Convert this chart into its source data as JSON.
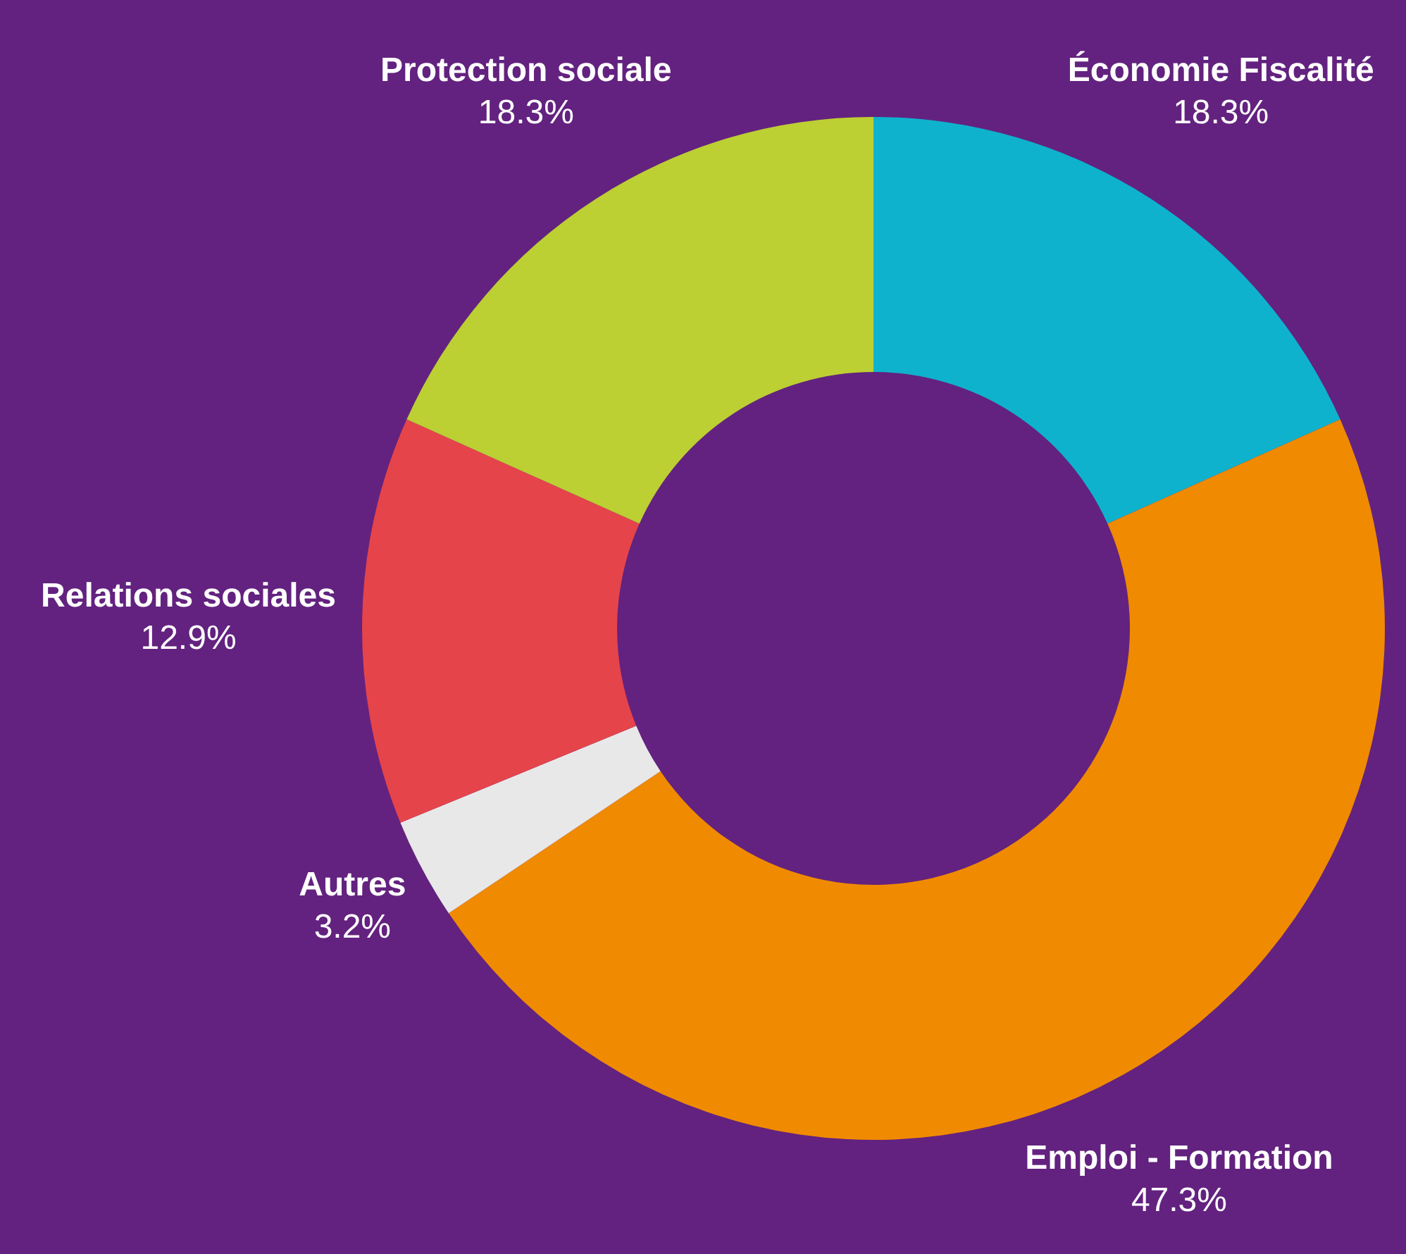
{
  "chart_data": {
    "type": "donut",
    "categories": [
      "Économie Fiscalité",
      "Emploi - Formation",
      "Autres",
      "Relations sociales",
      "Protection sociale"
    ],
    "values": [
      18.3,
      47.3,
      3.2,
      12.9,
      18.3
    ],
    "colors": [
      "#0fb2cc",
      "#f08a00",
      "#e8e8e8",
      "#e5444b",
      "#bccf33"
    ],
    "value_labels": [
      "18.3%",
      "47.3%",
      "3.2%",
      "12.9%",
      "18.3%"
    ]
  }
}
